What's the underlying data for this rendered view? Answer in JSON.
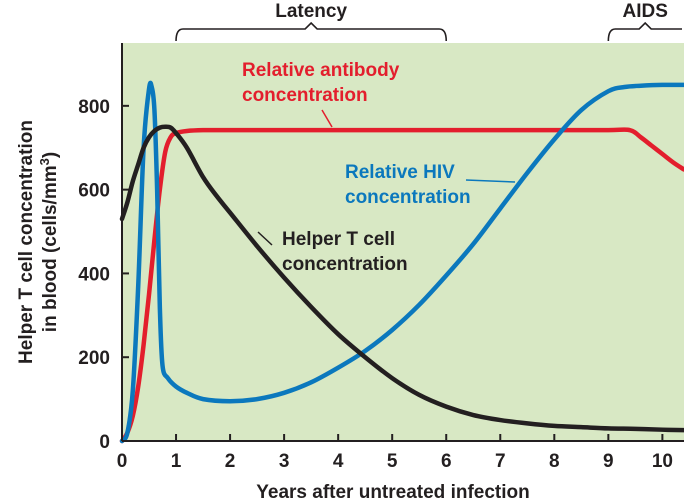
{
  "chart_data": {
    "type": "line",
    "xlabel": "Years after untreated infection",
    "ylabel_line1": "Helper T cell concentration",
    "ylabel_line2_prefix": "in blood (cells/mm",
    "ylabel_superscript": "3",
    "ylabel_line2_suffix": ")",
    "xlim": [
      0,
      10.4
    ],
    "ylim": [
      0,
      950
    ],
    "xticks": [
      0,
      1,
      2,
      3,
      4,
      5,
      6,
      7,
      8,
      9,
      10
    ],
    "yticks": [
      0,
      200,
      400,
      600,
      800
    ],
    "phases": [
      {
        "label": "Latency",
        "start": 1,
        "end": 6
      },
      {
        "label": "AIDS",
        "start": 9,
        "end": 10.4
      }
    ],
    "series": [
      {
        "key": "antibody",
        "label_lines": [
          "Relative antibody",
          "concentration"
        ],
        "color": "#e31e2d",
        "points": [
          [
            0,
            0
          ],
          [
            0.1,
            20
          ],
          [
            0.2,
            60
          ],
          [
            0.3,
            130
          ],
          [
            0.4,
            230
          ],
          [
            0.5,
            350
          ],
          [
            0.6,
            480
          ],
          [
            0.7,
            600
          ],
          [
            0.8,
            690
          ],
          [
            0.9,
            725
          ],
          [
            1.0,
            735
          ],
          [
            1.2,
            740
          ],
          [
            1.5,
            742
          ],
          [
            2,
            742
          ],
          [
            4,
            742
          ],
          [
            6,
            742
          ],
          [
            8,
            742
          ],
          [
            9,
            742
          ],
          [
            9.4,
            742
          ],
          [
            9.6,
            725
          ],
          [
            9.8,
            705
          ],
          [
            10,
            685
          ],
          [
            10.2,
            665
          ],
          [
            10.4,
            648
          ]
        ]
      },
      {
        "key": "hiv",
        "label_lines": [
          "Relative HIV",
          "concentration"
        ],
        "color": "#0b78bd",
        "points": [
          [
            0,
            0
          ],
          [
            0.1,
            20
          ],
          [
            0.2,
            120
          ],
          [
            0.3,
            370
          ],
          [
            0.4,
            700
          ],
          [
            0.5,
            840
          ],
          [
            0.55,
            845
          ],
          [
            0.6,
            790
          ],
          [
            0.65,
            600
          ],
          [
            0.7,
            320
          ],
          [
            0.75,
            180
          ],
          [
            0.85,
            150
          ],
          [
            1,
            130
          ],
          [
            1.2,
            115
          ],
          [
            1.5,
            100
          ],
          [
            2,
            95
          ],
          [
            2.5,
            100
          ],
          [
            3,
            115
          ],
          [
            3.5,
            140
          ],
          [
            4,
            175
          ],
          [
            4.5,
            215
          ],
          [
            5,
            265
          ],
          [
            5.5,
            325
          ],
          [
            6,
            395
          ],
          [
            6.5,
            470
          ],
          [
            7,
            555
          ],
          [
            7.5,
            640
          ],
          [
            8,
            720
          ],
          [
            8.5,
            790
          ],
          [
            9,
            835
          ],
          [
            9.3,
            845
          ],
          [
            9.6,
            848
          ],
          [
            10,
            850
          ],
          [
            10.4,
            850
          ]
        ]
      },
      {
        "key": "tcell",
        "label_lines": [
          "Helper T cell",
          "concentration"
        ],
        "color": "#231f20",
        "points": [
          [
            0,
            530
          ],
          [
            0.1,
            570
          ],
          [
            0.2,
            620
          ],
          [
            0.3,
            660
          ],
          [
            0.4,
            700
          ],
          [
            0.5,
            725
          ],
          [
            0.6,
            740
          ],
          [
            0.7,
            748
          ],
          [
            0.8,
            750
          ],
          [
            0.9,
            748
          ],
          [
            1.0,
            735
          ],
          [
            1.2,
            700
          ],
          [
            1.5,
            630
          ],
          [
            1.75,
            585
          ],
          [
            2,
            545
          ],
          [
            2.5,
            465
          ],
          [
            3,
            390
          ],
          [
            3.5,
            320
          ],
          [
            4,
            255
          ],
          [
            4.5,
            200
          ],
          [
            5,
            150
          ],
          [
            5.5,
            110
          ],
          [
            6,
            82
          ],
          [
            6.5,
            62
          ],
          [
            7,
            50
          ],
          [
            7.5,
            42
          ],
          [
            8,
            36
          ],
          [
            8.5,
            33
          ],
          [
            9,
            30
          ],
          [
            9.5,
            29
          ],
          [
            10,
            27
          ],
          [
            10.4,
            26
          ]
        ]
      }
    ]
  }
}
